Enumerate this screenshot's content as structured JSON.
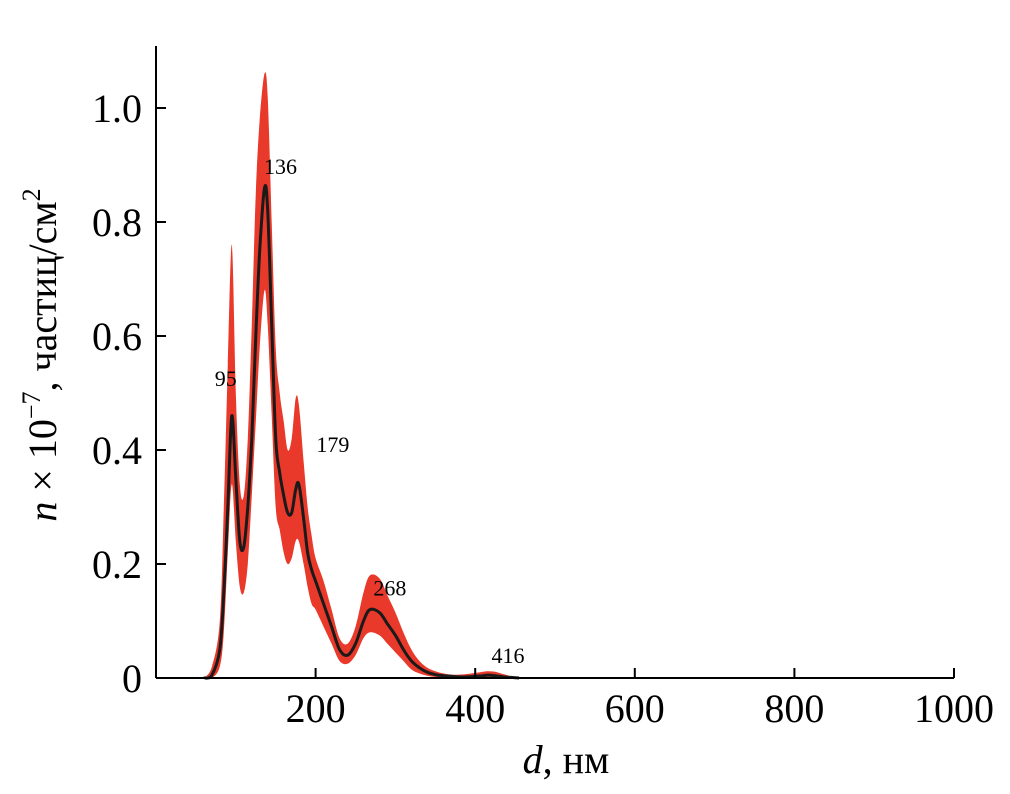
{
  "chart_data": {
    "type": "area",
    "x_label_var": "d",
    "x_label_unit": ", нм",
    "y_label_var": "n",
    "y_label_mid": " × 10",
    "y_label_exp": "−7",
    "y_label_unit": ", частиц/см",
    "y_label_unit_exp": "2",
    "xlim": [
      0,
      1000
    ],
    "ylim": [
      0,
      1.1
    ],
    "x_ticks": [
      200,
      400,
      600,
      800,
      1000
    ],
    "x_tick_labels": [
      "200",
      "400",
      "600",
      "800",
      "1000"
    ],
    "y_ticks": [
      0,
      0.2,
      0.4,
      0.6,
      0.8,
      1.0
    ],
    "y_tick_labels": [
      "0",
      "0.2",
      "0.4",
      "0.6",
      "0.8",
      "1.0"
    ],
    "band_color": "#e8392a",
    "mean_color": "#1a1a1a",
    "series": [
      {
        "x": [
          60,
          70,
          80,
          85,
          90,
          95,
          100,
          105,
          110,
          115,
          120,
          125,
          130,
          136,
          140,
          145,
          150,
          155,
          160,
          165,
          170,
          175,
          179,
          185,
          190,
          195,
          200,
          210,
          220,
          230,
          240,
          250,
          260,
          268,
          280,
          290,
          300,
          310,
          320,
          330,
          340,
          350,
          360,
          370,
          380,
          390,
          400,
          410,
          416,
          425,
          435,
          445,
          455
        ],
        "mean": [
          0,
          0.005,
          0.05,
          0.15,
          0.3,
          0.46,
          0.35,
          0.24,
          0.23,
          0.3,
          0.42,
          0.6,
          0.75,
          0.86,
          0.82,
          0.62,
          0.42,
          0.36,
          0.32,
          0.29,
          0.29,
          0.33,
          0.34,
          0.28,
          0.22,
          0.19,
          0.17,
          0.13,
          0.09,
          0.05,
          0.04,
          0.06,
          0.1,
          0.12,
          0.115,
          0.095,
          0.075,
          0.05,
          0.03,
          0.018,
          0.01,
          0.006,
          0.004,
          0.003,
          0.002,
          0.002,
          0.003,
          0.004,
          0.005,
          0.004,
          0.002,
          0.001,
          0
        ],
        "lower": [
          0,
          0,
          0.02,
          0.08,
          0.22,
          0.34,
          0.24,
          0.16,
          0.15,
          0.2,
          0.32,
          0.45,
          0.58,
          0.68,
          0.62,
          0.46,
          0.3,
          0.26,
          0.22,
          0.2,
          0.21,
          0.24,
          0.24,
          0.2,
          0.16,
          0.13,
          0.12,
          0.09,
          0.06,
          0.03,
          0.025,
          0.04,
          0.07,
          0.08,
          0.075,
          0.06,
          0.045,
          0.03,
          0.015,
          0.008,
          0.004,
          0.002,
          0.001,
          0,
          0,
          0,
          0,
          0.001,
          0.001,
          0.001,
          0,
          0,
          0
        ],
        "upper": [
          0,
          0.02,
          0.1,
          0.3,
          0.55,
          0.76,
          0.5,
          0.34,
          0.32,
          0.42,
          0.62,
          0.85,
          0.98,
          1.06,
          1.02,
          0.8,
          0.58,
          0.5,
          0.45,
          0.4,
          0.42,
          0.49,
          0.48,
          0.38,
          0.3,
          0.25,
          0.21,
          0.17,
          0.12,
          0.07,
          0.06,
          0.09,
          0.15,
          0.18,
          0.175,
          0.145,
          0.115,
          0.08,
          0.05,
          0.03,
          0.018,
          0.012,
          0.008,
          0.006,
          0.006,
          0.007,
          0.009,
          0.011,
          0.012,
          0.011,
          0.007,
          0.003,
          0
        ]
      }
    ],
    "peaks": [
      {
        "x": 95,
        "y": 0.46,
        "label": "95"
      },
      {
        "x": 136,
        "y": 0.86,
        "label": "136"
      },
      {
        "x": 179,
        "y": 0.34,
        "label": "179"
      },
      {
        "x": 268,
        "y": 0.12,
        "label": "268"
      },
      {
        "x": 416,
        "y": 0.005,
        "label": "416"
      }
    ]
  }
}
